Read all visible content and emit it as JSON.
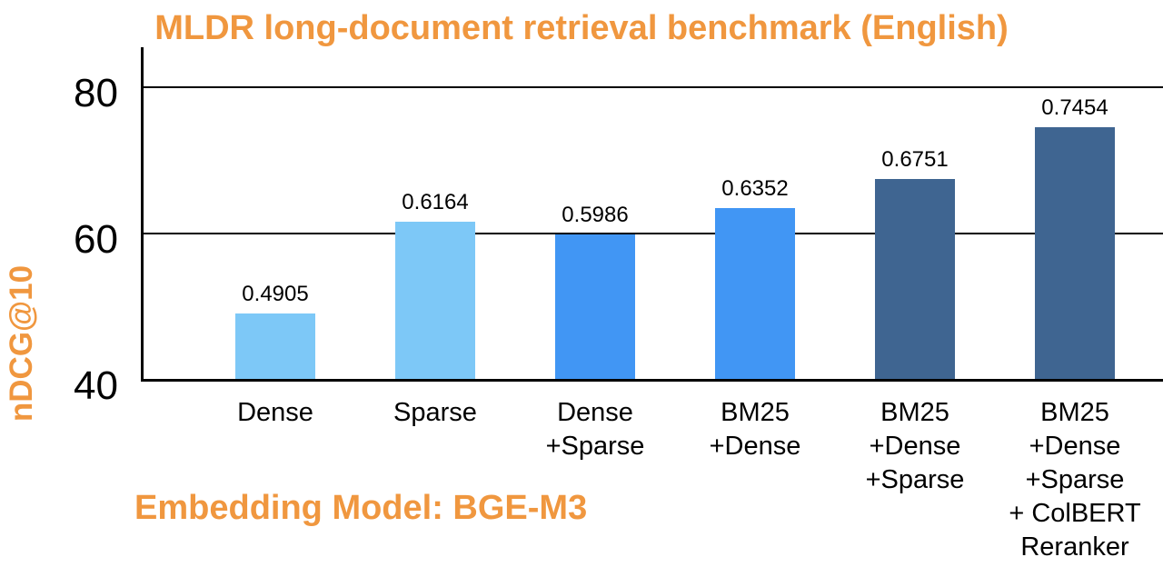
{
  "title": "MLDR long-document retrieval benchmark (English)",
  "y_axis_label": "nDCG@10",
  "footnote": "Embedding Model: BGE-M3",
  "colors": {
    "accent_orange": "#F0973F",
    "bar_light_blue": "#7DC8F7",
    "bar_medium_blue": "#4196F4",
    "bar_dark_blue": "#3F6591",
    "axis_black": "#000000"
  },
  "chart_data": {
    "type": "bar",
    "title": "MLDR long-document retrieval benchmark (English)",
    "xlabel": "",
    "ylabel": "nDCG@10",
    "annotation": "Embedding Model: BGE-M3",
    "ylim": [
      40,
      80
    ],
    "yticks": [
      40,
      60,
      80
    ],
    "grid": true,
    "legend_position": "none",
    "value_scale_note": "bar heights are value × 100 plotted on the 40–80 nDCG@10 axis",
    "categories": [
      "Dense",
      "Sparse",
      "Dense\n+Sparse",
      "BM25\n+Dense",
      "BM25\n+Dense\n+Sparse",
      "BM25\n+Dense\n+Sparse\n+ ColBERT\nReranker"
    ],
    "values": [
      0.4905,
      0.6164,
      0.5986,
      0.6352,
      0.6751,
      0.7454
    ],
    "data_labels": [
      "0.4905",
      "0.6164",
      "0.5986",
      "0.6352",
      "0.6751",
      "0.7454"
    ],
    "bar_colors": [
      "#7DC8F7",
      "#7DC8F7",
      "#4196F4",
      "#4196F4",
      "#3F6591",
      "#3F6591"
    ]
  }
}
